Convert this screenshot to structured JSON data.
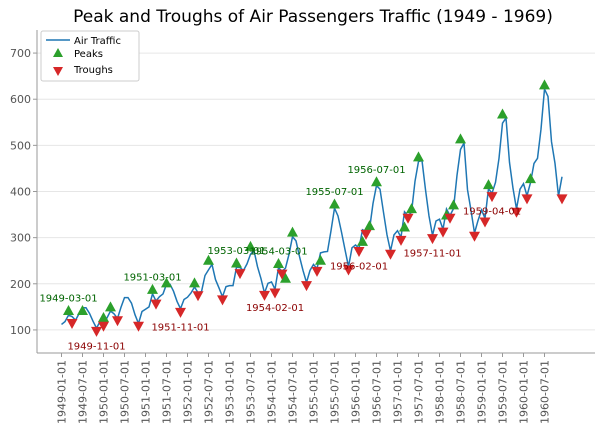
{
  "chart_data": {
    "type": "line",
    "title": "Peak and Troughs of Air Passengers Traffic (1949 - 1969)",
    "xlabel": "",
    "ylabel": "",
    "ylim": [
      50,
      750
    ],
    "y_ticks": [
      100,
      200,
      300,
      400,
      500,
      600,
      700
    ],
    "x_tick_labels": [
      "1949-01-01",
      "1949-07-01",
      "1950-01-01",
      "1950-07-01",
      "1951-01-01",
      "1951-07-01",
      "1952-01-01",
      "1952-07-01",
      "1953-01-01",
      "1953-07-01",
      "1954-01-01",
      "1954-07-01",
      "1955-01-01",
      "1955-07-01",
      "1956-01-01",
      "1956-07-01",
      "1957-01-01",
      "1957-07-01",
      "1958-01-01",
      "1958-07-01",
      "1959-01-01",
      "1959-07-01",
      "1960-01-01",
      "1960-07-01"
    ],
    "grid": true,
    "legend_position": "top-left",
    "legend": {
      "line_label": "Air Traffic",
      "peaks_label": "Peaks",
      "troughs_label": "Troughs"
    },
    "colors": {
      "line": "#1f77b4",
      "peak": "#2ca02c",
      "trough": "#d62728",
      "peak_text": "#006400",
      "trough_text": "#8b0000"
    },
    "series": [
      {
        "name": "Air Traffic",
        "x": [
          "1949-01",
          "1949-02",
          "1949-03",
          "1949-04",
          "1949-05",
          "1949-06",
          "1949-07",
          "1949-08",
          "1949-09",
          "1949-10",
          "1949-11",
          "1949-12",
          "1950-01",
          "1950-02",
          "1950-03",
          "1950-04",
          "1950-05",
          "1950-06",
          "1950-07",
          "1950-08",
          "1950-09",
          "1950-10",
          "1950-11",
          "1950-12",
          "1951-01",
          "1951-02",
          "1951-03",
          "1951-04",
          "1951-05",
          "1951-06",
          "1951-07",
          "1951-08",
          "1951-09",
          "1951-10",
          "1951-11",
          "1951-12",
          "1952-01",
          "1952-02",
          "1952-03",
          "1952-04",
          "1952-05",
          "1952-06",
          "1952-07",
          "1952-08",
          "1952-09",
          "1952-10",
          "1952-11",
          "1952-12",
          "1953-01",
          "1953-02",
          "1953-03",
          "1953-04",
          "1953-05",
          "1953-06",
          "1953-07",
          "1953-08",
          "1953-09",
          "1953-10",
          "1953-11",
          "1953-12",
          "1954-01",
          "1954-02",
          "1954-03",
          "1954-04",
          "1954-05",
          "1954-06",
          "1954-07",
          "1954-08",
          "1954-09",
          "1954-10",
          "1954-11",
          "1954-12",
          "1955-01",
          "1955-02",
          "1955-03",
          "1955-04",
          "1955-05",
          "1955-06",
          "1955-07",
          "1955-08",
          "1955-09",
          "1955-10",
          "1955-11",
          "1955-12",
          "1956-01",
          "1956-02",
          "1956-03",
          "1956-04",
          "1956-05",
          "1956-06",
          "1956-07",
          "1956-08",
          "1956-09",
          "1956-10",
          "1956-11",
          "1956-12",
          "1957-01",
          "1957-02",
          "1957-03",
          "1957-04",
          "1957-05",
          "1957-06",
          "1957-07",
          "1957-08",
          "1957-09",
          "1957-10",
          "1957-11",
          "1957-12",
          "1958-01",
          "1958-02",
          "1958-03",
          "1958-04",
          "1958-05",
          "1958-06",
          "1958-07",
          "1958-08",
          "1958-09",
          "1958-10",
          "1958-11",
          "1958-12",
          "1959-01",
          "1959-02",
          "1959-03",
          "1959-04",
          "1959-05",
          "1959-06",
          "1959-07",
          "1959-08",
          "1959-09",
          "1959-10",
          "1959-11",
          "1959-12",
          "1960-01",
          "1960-02",
          "1960-03",
          "1960-04",
          "1960-05",
          "1960-06",
          "1960-07",
          "1960-08",
          "1960-09",
          "1960-10",
          "1960-11",
          "1960-12"
        ],
        "values": [
          112,
          118,
          132,
          129,
          121,
          135,
          148,
          148,
          136,
          119,
          104,
          118,
          115,
          126,
          141,
          135,
          125,
          149,
          170,
          170,
          158,
          133,
          114,
          140,
          145,
          150,
          178,
          163,
          172,
          178,
          199,
          199,
          184,
          162,
          146,
          166,
          171,
          180,
          193,
          181,
          183,
          218,
          230,
          242,
          209,
          191,
          172,
          194,
          196,
          196,
          236,
          235,
          229,
          243,
          264,
          272,
          237,
          211,
          180,
          201,
          204,
          188,
          235,
          227,
          234,
          264,
          302,
          293,
          259,
          229,
          203,
          229,
          242,
          233,
          267,
          269,
          270,
          315,
          364,
          347,
          312,
          274,
          237,
          278,
          284,
          277,
          317,
          313,
          318,
          374,
          413,
          405,
          355,
          306,
          271,
          306,
          315,
          301,
          356,
          348,
          355,
          422,
          465,
          467,
          404,
          347,
          305,
          336,
          340,
          318,
          362,
          348,
          363,
          435,
          491,
          505,
          404,
          359,
          310,
          337,
          360,
          342,
          406,
          396,
          420,
          472,
          548,
          559,
          463,
          407,
          362,
          405,
          417,
          391,
          419,
          461,
          472,
          535,
          622,
          606,
          508,
          461,
          390,
          432
        ]
      },
      {
        "name": "Peaks",
        "points": [
          {
            "x": "1949-03",
            "y": 142
          },
          {
            "x": "1949-07",
            "y": 142
          },
          {
            "x": "1950-01",
            "y": 127
          },
          {
            "x": "1950-03",
            "y": 150
          },
          {
            "x": "1951-03",
            "y": 188
          },
          {
            "x": "1951-07",
            "y": 202
          },
          {
            "x": "1952-03",
            "y": 202
          },
          {
            "x": "1952-07",
            "y": 251
          },
          {
            "x": "1953-03",
            "y": 245
          },
          {
            "x": "1953-07",
            "y": 281
          },
          {
            "x": "1954-03",
            "y": 244
          },
          {
            "x": "1954-07",
            "y": 312
          },
          {
            "x": "1955-03",
            "y": 251
          },
          {
            "x": "1955-07",
            "y": 373
          },
          {
            "x": "1956-03",
            "y": 292
          },
          {
            "x": "1956-07",
            "y": 421
          },
          {
            "x": "1957-03",
            "y": 323
          },
          {
            "x": "1957-07",
            "y": 475
          },
          {
            "x": "1958-03",
            "y": 349
          },
          {
            "x": "1958-07",
            "y": 514
          },
          {
            "x": "1959-03",
            "y": 415
          },
          {
            "x": "1959-07",
            "y": 568
          },
          {
            "x": "1960-03",
            "y": 428
          },
          {
            "x": "1960-07",
            "y": 631
          },
          {
            "x": "1954-05",
            "y": 212
          },
          {
            "x": "1956-05",
            "y": 326
          },
          {
            "x": "1957-05",
            "y": 363
          },
          {
            "x": "1958-05",
            "y": 371
          }
        ],
        "labels": [
          {
            "x": "1949-03",
            "y": 142,
            "text": "1949-03-01"
          },
          {
            "x": "1951-03",
            "y": 188,
            "text": "1951-03-01"
          },
          {
            "x": "1953-03",
            "y": 245,
            "text": "1953-03-01"
          },
          {
            "x": "1954-03",
            "y": 244,
            "text": "1954-03-01"
          },
          {
            "x": "1955-07",
            "y": 373,
            "text": "1955-07-01"
          },
          {
            "x": "1956-07",
            "y": 421,
            "text": "1956-07-01"
          }
        ]
      },
      {
        "name": "Troughs",
        "points": [
          {
            "x": "1949-04",
            "y": 114
          },
          {
            "x": "1949-11",
            "y": 97
          },
          {
            "x": "1950-01",
            "y": 108
          },
          {
            "x": "1950-05",
            "y": 120
          },
          {
            "x": "1950-11",
            "y": 108
          },
          {
            "x": "1951-04",
            "y": 156
          },
          {
            "x": "1951-11",
            "y": 138
          },
          {
            "x": "1952-04",
            "y": 174
          },
          {
            "x": "1952-11",
            "y": 165
          },
          {
            "x": "1953-04",
            "y": 222
          },
          {
            "x": "1953-11",
            "y": 175
          },
          {
            "x": "1954-02",
            "y": 180
          },
          {
            "x": "1954-04",
            "y": 221
          },
          {
            "x": "1954-11",
            "y": 196
          },
          {
            "x": "1955-02",
            "y": 227
          },
          {
            "x": "1955-11",
            "y": 230
          },
          {
            "x": "1956-02",
            "y": 270
          },
          {
            "x": "1956-04",
            "y": 307
          },
          {
            "x": "1956-11",
            "y": 264
          },
          {
            "x": "1957-02",
            "y": 294
          },
          {
            "x": "1957-04",
            "y": 342
          },
          {
            "x": "1957-11",
            "y": 298
          },
          {
            "x": "1958-02",
            "y": 312
          },
          {
            "x": "1958-04",
            "y": 342
          },
          {
            "x": "1958-11",
            "y": 303
          },
          {
            "x": "1959-02",
            "y": 334
          },
          {
            "x": "1959-04",
            "y": 389
          },
          {
            "x": "1959-11",
            "y": 355
          },
          {
            "x": "1960-02",
            "y": 384
          },
          {
            "x": "1960-12",
            "y": 384
          }
        ],
        "labels": [
          {
            "x": "1949-11",
            "y": 97,
            "text": "1949-11-01"
          },
          {
            "x": "1951-11",
            "y": 138,
            "text": "1951-11-01"
          },
          {
            "x": "1954-02",
            "y": 180,
            "text": "1954-02-01"
          },
          {
            "x": "1956-02",
            "y": 270,
            "text": "1956-02-01"
          },
          {
            "x": "1957-11",
            "y": 298,
            "text": "1957-11-01"
          },
          {
            "x": "1959-04",
            "y": 389,
            "text": "1959-04-01"
          }
        ]
      }
    ]
  }
}
